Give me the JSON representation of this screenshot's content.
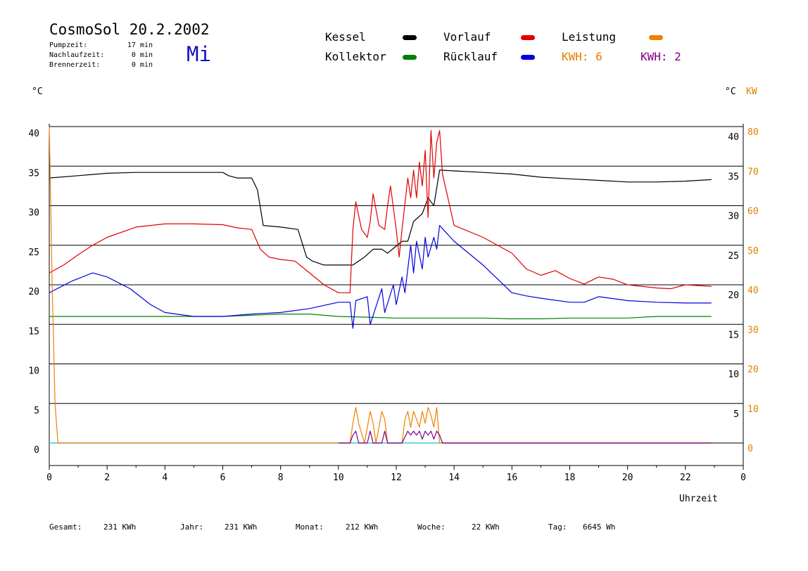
{
  "header": {
    "title": "CosmoSol 20.2.2002",
    "day": "Mi",
    "info": [
      {
        "label": "Pumpzeit:",
        "value": "17 min"
      },
      {
        "label": "Nachlaufzeit:",
        "value": "0 min"
      },
      {
        "label": "Brennerzeit:",
        "value": "0 min"
      }
    ]
  },
  "legend": {
    "kessel": "Kessel",
    "vorlauf": "Vorlauf",
    "leistung": "Leistung",
    "kollektor": "Kollektor",
    "ruecklauf": "Rücklauf",
    "kwh1": "KWH: 6",
    "kwh2": "KWH: 2"
  },
  "axes": {
    "left_unit": "°C",
    "right_unit_c": "°C",
    "right_unit_kw": "KW",
    "x_title": "Uhrzeit"
  },
  "footer": {
    "gesamt_label": "Gesamt:",
    "gesamt_value": "231 KWh",
    "jahr_label": "Jahr:",
    "jahr_value": "231 KWh",
    "monat_label": "Monat:",
    "monat_value": "212 KWh",
    "woche_label": "Woche:",
    "woche_value": "22 KWh",
    "tag_label": "Tag:",
    "tag_value": "6645 Wh"
  },
  "colors": {
    "kessel": "#000000",
    "kollektor": "#008000",
    "vorlauf": "#e00000",
    "ruecklauf": "#0000e0",
    "leistung": "#f08000",
    "kwh2": "#800080",
    "baseline": "#40d0d0"
  },
  "chart_data": {
    "type": "line",
    "xlim": [
      0,
      24
    ],
    "ylim_left": [
      0,
      40
    ],
    "ylim_right_kw": [
      0,
      80
    ],
    "x_ticks": [
      "0",
      "2",
      "4",
      "6",
      "8",
      "10",
      "12",
      "14",
      "16",
      "18",
      "20",
      "22",
      "0"
    ],
    "y_ticks_left": [
      "0",
      "5",
      "10",
      "15",
      "20",
      "25",
      "30",
      "35",
      "40"
    ],
    "y_ticks_right_c": [
      "5",
      "10",
      "15",
      "20",
      "25",
      "30",
      "35",
      "40"
    ],
    "y_ticks_right_kw": [
      "0",
      "10",
      "20",
      "30",
      "40",
      "50",
      "60",
      "70",
      "80"
    ],
    "series": [
      {
        "name": "Kessel",
        "key": "kessel",
        "axis": "left",
        "x": [
          0,
          1,
          2,
          3,
          4,
          5,
          6,
          6.2,
          6.5,
          7,
          7.2,
          7.4,
          8,
          8.6,
          8.9,
          9.1,
          9.5,
          10,
          10.5,
          10.9,
          11.2,
          11.5,
          11.7,
          12.2,
          12.4,
          12.6,
          12.9,
          13.1,
          13.3,
          13.5,
          14,
          15,
          16,
          17,
          18,
          19,
          20,
          21,
          22,
          22.9
        ],
        "y": [
          33.5,
          33.8,
          34.1,
          34.2,
          34.2,
          34.2,
          34.2,
          33.8,
          33.5,
          33.5,
          32,
          27.5,
          27.3,
          27,
          23.5,
          23,
          22.5,
          22.5,
          22.5,
          23.5,
          24.5,
          24.5,
          24,
          25.5,
          25.5,
          28,
          29,
          31,
          30,
          34.5,
          34.4,
          34.2,
          34,
          33.6,
          33.4,
          33.2,
          33,
          33,
          33.1,
          33.3
        ]
      },
      {
        "name": "Vorlauf",
        "key": "vorlauf",
        "axis": "left",
        "x": [
          0,
          0.5,
          1,
          1.5,
          2,
          3,
          4,
          5,
          6,
          6.5,
          7,
          7.3,
          7.6,
          8,
          8.5,
          9,
          9.5,
          10,
          10.4,
          10.5,
          10.6,
          10.8,
          11,
          11.1,
          11.2,
          11.4,
          11.6,
          11.7,
          11.8,
          12,
          12.1,
          12.2,
          12.4,
          12.5,
          12.6,
          12.7,
          12.8,
          12.9,
          13,
          13.1,
          13.2,
          13.3,
          13.4,
          13.5,
          13.6,
          14,
          15,
          16,
          16.5,
          17,
          17.5,
          18,
          18.5,
          19,
          19.5,
          20,
          21,
          21.5,
          22,
          22.9
        ],
        "y": [
          21.5,
          22.5,
          23.8,
          25,
          26,
          27.3,
          27.7,
          27.7,
          27.6,
          27.2,
          27,
          24.5,
          23.5,
          23.2,
          23,
          21.5,
          20,
          19,
          19,
          27,
          30.5,
          27,
          26,
          28,
          31.5,
          27.5,
          27,
          30,
          32.5,
          27,
          23.5,
          27,
          33.5,
          31,
          34.5,
          31,
          35.5,
          32.5,
          37,
          28.5,
          39.5,
          33.5,
          38,
          39.5,
          34,
          27.5,
          26,
          24,
          22,
          21.2,
          21.8,
          20.8,
          20.1,
          21,
          20.7,
          20,
          19.6,
          19.5,
          20,
          19.8
        ]
      },
      {
        "name": "Kollektor",
        "key": "kollektor",
        "axis": "left",
        "x": [
          0,
          2,
          4,
          6,
          8,
          9,
          10,
          11,
          12,
          13,
          14,
          15,
          16,
          17,
          18,
          19,
          20,
          21,
          22,
          22.9
        ],
        "y": [
          16,
          16,
          16,
          16,
          16.3,
          16.3,
          16,
          15.9,
          15.8,
          15.8,
          15.8,
          15.8,
          15.7,
          15.7,
          15.8,
          15.8,
          15.8,
          16,
          16,
          16
        ]
      },
      {
        "name": "Rücklauf",
        "key": "ruecklauf",
        "axis": "left",
        "x": [
          0,
          0.8,
          1.5,
          2,
          2.8,
          3.5,
          4,
          5,
          6,
          7,
          8,
          9,
          10,
          10.4,
          10.5,
          10.6,
          11,
          11.1,
          11.5,
          11.6,
          11.9,
          12,
          12.2,
          12.3,
          12.5,
          12.6,
          12.7,
          12.9,
          13,
          13.1,
          13.3,
          13.4,
          13.5,
          14,
          15,
          16,
          16.5,
          17,
          18,
          18.5,
          19,
          20,
          21,
          22,
          22.9
        ],
        "y": [
          19,
          20.5,
          21.5,
          21,
          19.5,
          17.5,
          16.5,
          16,
          16,
          16.3,
          16.5,
          17,
          17.8,
          17.8,
          14.5,
          18,
          18.5,
          15,
          19.5,
          16.5,
          20,
          17.5,
          21,
          19,
          25,
          21.5,
          25.5,
          22,
          26,
          23.5,
          26,
          24.5,
          27.5,
          25.5,
          22.5,
          19,
          18.6,
          18.3,
          17.8,
          17.8,
          18.5,
          18,
          17.8,
          17.7,
          17.7
        ]
      },
      {
        "name": "Leistung",
        "key": "leistung",
        "axis": "right_kw",
        "x": [
          0,
          0.05,
          0.1,
          0.15,
          0.2,
          0.3,
          10,
          10.4,
          10.5,
          10.6,
          10.7,
          10.9,
          11,
          11.1,
          11.2,
          11.3,
          11.4,
          11.5,
          11.6,
          11.7,
          11.8,
          12.2,
          12.3,
          12.4,
          12.5,
          12.6,
          12.7,
          12.8,
          12.9,
          13,
          13.1,
          13.2,
          13.3,
          13.4,
          13.5,
          13.6,
          22.9
        ],
        "y": [
          80,
          60,
          40,
          25,
          10,
          0,
          0,
          0,
          5,
          9,
          5,
          0,
          4,
          8,
          5,
          0,
          4,
          8,
          6,
          0,
          0,
          0,
          6,
          8,
          4,
          8,
          6,
          4,
          8,
          5,
          9,
          7,
          4,
          9,
          0,
          0,
          0
        ]
      },
      {
        "name": "KWH: 2",
        "key": "kwh2",
        "axis": "right_kw",
        "x": [
          10,
          10.4,
          10.5,
          10.6,
          10.7,
          11,
          11.1,
          11.2,
          11.5,
          11.6,
          11.7,
          12.2,
          12.4,
          12.5,
          12.6,
          12.7,
          12.8,
          12.9,
          13,
          13.1,
          13.2,
          13.3,
          13.4,
          13.5,
          13.6,
          22.9
        ],
        "y": [
          0,
          0,
          2,
          3,
          0,
          0,
          3,
          0,
          0,
          3,
          0,
          0,
          3,
          2,
          3,
          2,
          3,
          1,
          3,
          2,
          3,
          1,
          3,
          2,
          0,
          0
        ]
      }
    ]
  }
}
